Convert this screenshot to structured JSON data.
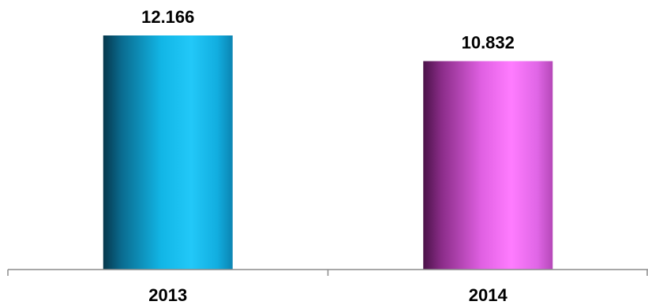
{
  "chart_data": {
    "type": "bar",
    "categories": [
      "2013",
      "2014"
    ],
    "values": [
      12.166,
      10.832
    ],
    "value_labels": [
      "12.166",
      "10.832"
    ],
    "colors": [
      "#1ab8e8",
      "#e860e8"
    ],
    "title": "",
    "xlabel": "",
    "ylabel": "",
    "ylim": [
      0,
      12.166
    ],
    "grid": false,
    "legend": "none"
  }
}
